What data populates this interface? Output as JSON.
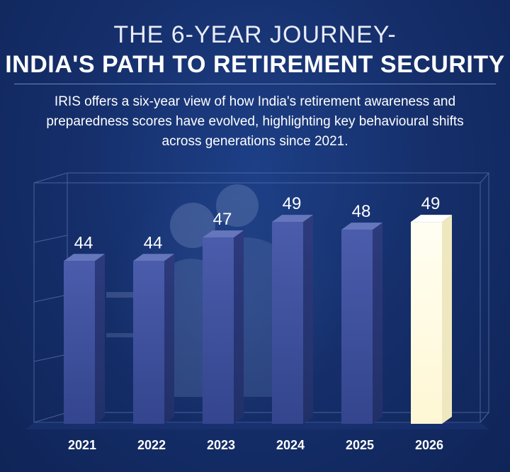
{
  "title_line1": "THE 6-YEAR JOURNEY-",
  "title_line2": "INDIA'S PATH TO RETIREMENT SECURITY",
  "subtitle": "IRIS offers a six-year view of how India's retirement awareness and preparedness scores have evolved, highlighting key behavioural shifts across generations since 2021.",
  "colors": {
    "background": "#16306d",
    "bar": "#3d4f9c",
    "highlight_bar": "#fffbe3"
  },
  "chart_data": {
    "type": "bar",
    "categories": [
      "2021",
      "2022",
      "2023",
      "2024",
      "2025",
      "2026"
    ],
    "values": [
      44,
      44,
      47,
      49,
      48,
      49
    ],
    "highlight_category": "2026",
    "ylim": [
      0,
      52
    ],
    "grid": false,
    "title": "",
    "xlabel": "",
    "ylabel": ""
  }
}
